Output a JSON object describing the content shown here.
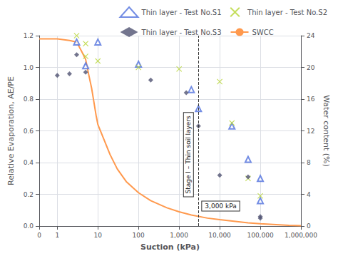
{
  "chart_data": {
    "type": "scatter",
    "xlabel": "Suction (kPa)",
    "ylabel": "Relative Evaporation, AE/PE",
    "y2label": "Water content (%)",
    "log": "x",
    "xlim": [
      0,
      1000000
    ],
    "xticks": [
      0,
      1,
      10,
      100,
      {
        "value": 1000,
        "label": "1,000"
      },
      {
        "value": 10000,
        "label": "10,000"
      },
      {
        "value": 100000,
        "label": "100,000"
      },
      {
        "value": 1000000,
        "label": "1,000,000"
      }
    ],
    "ylim": [
      0.0,
      1.2
    ],
    "yticks": [
      {
        "value": 0.0,
        "label": "0.0"
      },
      0.2,
      0.4,
      0.6,
      0.8,
      {
        "value": 1.0,
        "label": "1.0"
      },
      1.2
    ],
    "y2lim": [
      0,
      24
    ],
    "y2ticks": [
      0,
      4,
      8,
      12,
      16,
      20,
      24
    ],
    "grid": true,
    "legend": "upper right",
    "series": [
      {
        "name": "Thin layer - Test No.S1",
        "type": "scatter",
        "marker": "triangle-open",
        "x": [
          3,
          5,
          10,
          100,
          2000,
          3000,
          20000,
          50000,
          100000,
          100000
        ],
        "values": [
          1.16,
          1.01,
          1.16,
          1.02,
          0.86,
          0.74,
          0.63,
          0.42,
          0.3,
          0.16
        ]
      },
      {
        "name": "Thin layer - Test No.S2",
        "type": "scatter",
        "marker": "x",
        "x": [
          3,
          5,
          5,
          10,
          100,
          1000,
          10000,
          20000,
          50000,
          100000
        ],
        "values": [
          1.2,
          1.15,
          1.07,
          1.04,
          1.0,
          0.99,
          0.91,
          0.65,
          0.3,
          0.19
        ]
      },
      {
        "name": "Thin layer - Test No.S3",
        "type": "scatter",
        "marker": "diamond",
        "x": [
          1,
          2,
          3,
          5,
          200,
          1500,
          3000,
          10000,
          50000,
          100000,
          100000
        ],
        "values": [
          0.95,
          0.96,
          1.08,
          0.97,
          0.92,
          0.84,
          0.63,
          0.32,
          0.31,
          0.06,
          0.05
        ]
      },
      {
        "name": "SWCC",
        "type": "line",
        "line_style": "solid",
        "x": [
          0.0,
          0.1,
          0.3,
          0.5,
          1,
          2,
          3,
          4,
          5,
          6,
          7,
          8,
          9,
          10,
          20,
          30,
          50,
          100,
          200,
          500,
          1000,
          2000,
          5000,
          10000,
          50000,
          100000,
          500000,
          1000000
        ],
        "values": [
          1.18,
          1.18,
          1.18,
          1.18,
          1.18,
          1.17,
          1.16,
          1.1,
          1.05,
          0.95,
          0.87,
          0.78,
          0.7,
          0.64,
          0.45,
          0.36,
          0.28,
          0.21,
          0.16,
          0.115,
          0.09,
          0.07,
          0.05,
          0.04,
          0.02,
          0.015,
          0.005,
          0.002
        ]
      }
    ],
    "annotations": [
      {
        "text": "Stage I – Thin soil layers"
      },
      {
        "text": "3,000 kPa",
        "x": 3000,
        "line_style": "dashed"
      }
    ]
  }
}
